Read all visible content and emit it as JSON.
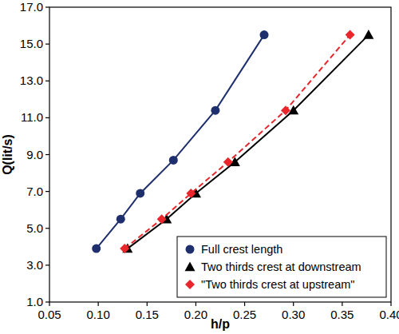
{
  "chart_data": {
    "type": "line",
    "x_label": "h/p",
    "y_label": "Q(lit/s)",
    "xlim": [
      0.05,
      0.4
    ],
    "ylim": [
      1.0,
      17.0
    ],
    "xticks": [
      0.05,
      {
        "value": 0.1,
        "label": "0.10"
      },
      0.15,
      {
        "value": 0.2,
        "label": "0.20"
      },
      0.25,
      {
        "value": 0.3,
        "label": "0.30"
      },
      0.35,
      {
        "value": 0.4,
        "label": "0.40"
      }
    ],
    "yticks": [
      {
        "value": 1,
        "label": "1.0"
      },
      {
        "value": 3,
        "label": "3.0"
      },
      {
        "value": 5,
        "label": "5.0"
      },
      {
        "value": 7,
        "label": "7.0"
      },
      {
        "value": 9,
        "label": "9.0"
      },
      {
        "value": 11,
        "label": "11.0"
      },
      {
        "value": 13,
        "label": "13.0"
      },
      {
        "value": 15,
        "label": "15.0"
      },
      {
        "value": 17,
        "label": "17.0"
      }
    ],
    "grid": false,
    "legend": "bottom-right",
    "series": [
      {
        "name": "Full crest length",
        "color": "#1f2f6e",
        "marker": "circle",
        "line_style": "solid",
        "x": [
          0.098,
          0.123,
          0.143,
          0.177,
          0.22,
          0.27
        ],
        "values": [
          3.9,
          5.5,
          6.9,
          8.7,
          11.4,
          15.5
        ]
      },
      {
        "name": "Two thirds crest at downstream",
        "color": "#000000",
        "marker": "triangle",
        "line_style": "solid",
        "x": [
          0.13,
          0.17,
          0.2,
          0.24,
          0.3,
          0.377
        ],
        "values": [
          3.9,
          5.5,
          6.9,
          8.6,
          11.4,
          15.5
        ]
      },
      {
        "name": "\"Two thirds crest at upstream\"",
        "color": "#e8262b",
        "marker": "diamond",
        "line_style": "dashed",
        "x": [
          0.127,
          0.165,
          0.195,
          0.233,
          0.292,
          0.358
        ],
        "values": [
          3.9,
          5.5,
          6.9,
          8.6,
          11.4,
          15.5
        ]
      }
    ]
  }
}
